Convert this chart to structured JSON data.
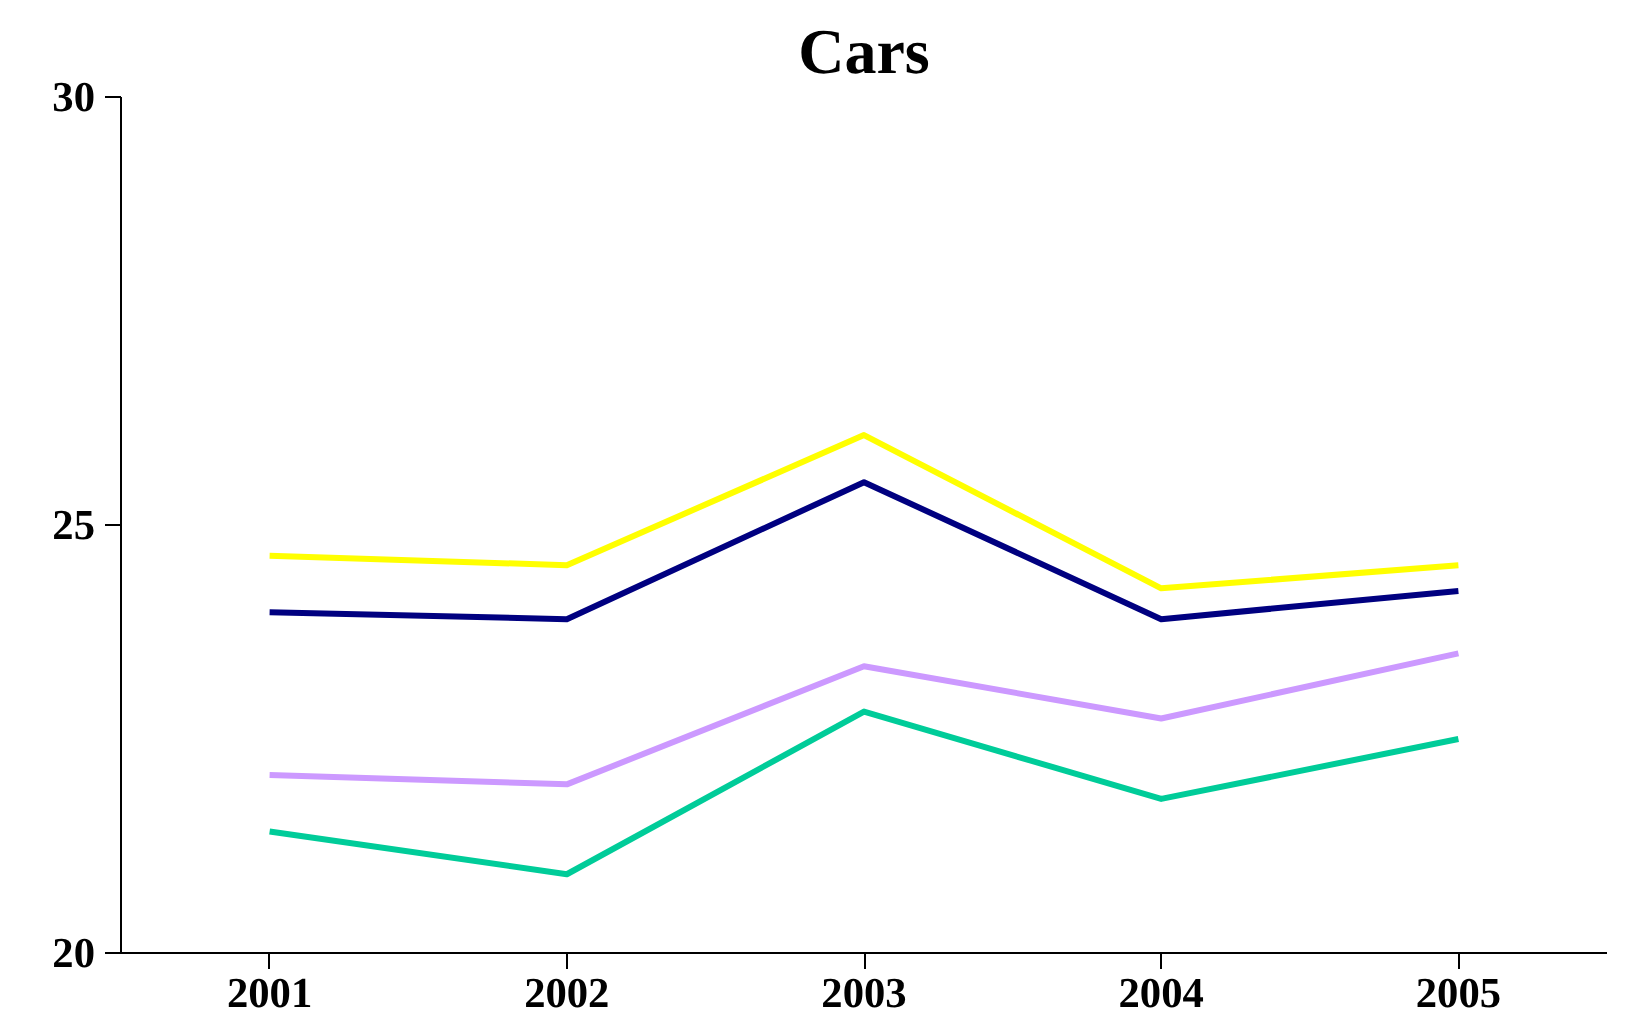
{
  "chart_data": {
    "type": "line",
    "title": "Cars",
    "categories": [
      "2001",
      "2002",
      "2003",
      "2004",
      "2005"
    ],
    "series": [
      {
        "color": "#ffff00",
        "values": [
          24.64,
          24.53,
          26.05,
          24.26,
          24.53
        ]
      },
      {
        "color": "#000080",
        "values": [
          23.98,
          23.9,
          25.5,
          23.9,
          24.23
        ]
      },
      {
        "color": "#cc99ff",
        "values": [
          22.08,
          21.97,
          23.35,
          22.74,
          23.5
        ]
      },
      {
        "color": "#00cc99",
        "values": [
          21.42,
          20.92,
          22.82,
          21.8,
          22.5
        ]
      }
    ],
    "ylim": [
      20,
      30
    ],
    "yticks": [
      20,
      25,
      30
    ],
    "grid": false
  }
}
